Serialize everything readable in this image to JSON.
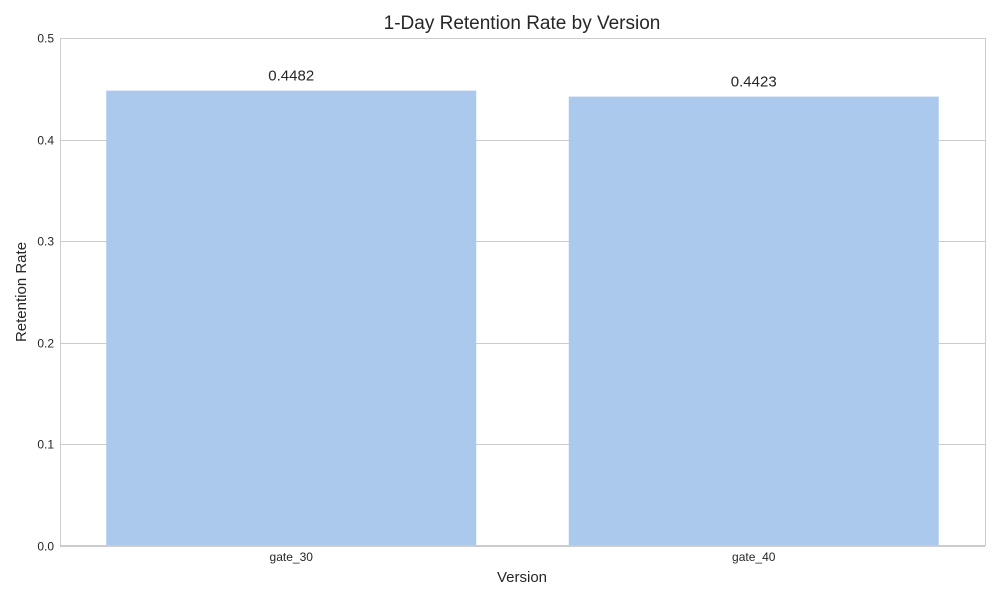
{
  "chart_data": {
    "type": "bar",
    "title": "1-Day Retention Rate by Version",
    "xlabel": "Version",
    "ylabel": "Retention Rate",
    "categories": [
      "gate_30",
      "gate_40"
    ],
    "values": [
      0.4482,
      0.4423
    ],
    "value_labels": [
      "0.4482",
      "0.4423"
    ],
    "ylim": [
      0,
      0.5
    ],
    "yticks": [
      0.0,
      0.1,
      0.2,
      0.3,
      0.4,
      0.5
    ],
    "ytick_labels": [
      "0.0",
      "0.1",
      "0.2",
      "0.3",
      "0.4",
      "0.5"
    ],
    "grid": true,
    "bar_color": "#abc9ec",
    "text_color": "#262626",
    "grid_color": "#cccccc"
  }
}
